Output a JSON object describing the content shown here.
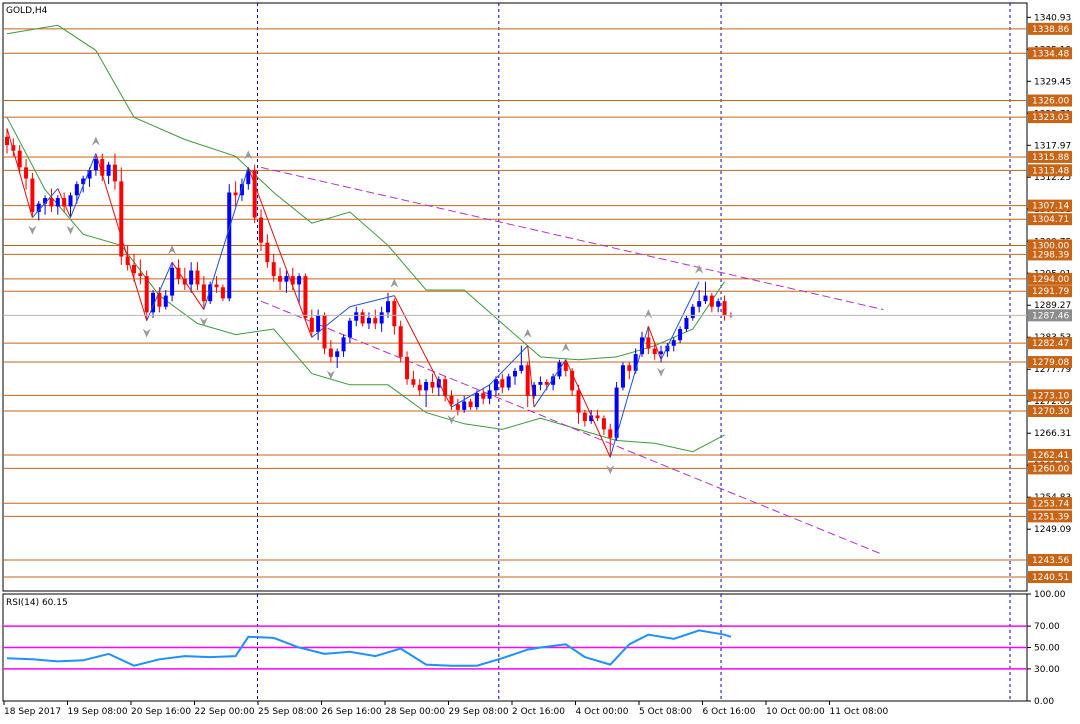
{
  "chart_title": "GOLD,H4",
  "rsi_label": "RSI(14) 60.15",
  "colors": {
    "background": "#ffffff",
    "frame": "#000000",
    "bull_candle": "#0000ff",
    "bear_candle": "#ff0000",
    "bollinger": "#3c9a3c",
    "level_line": "#c86414",
    "level_label_bg": "#c86414",
    "channel": "#b432c8",
    "zigzag_down": "#e01010",
    "zigzag_up": "#1e50dc",
    "session_separator": "#0000cc",
    "fractal": "#9a9a9a",
    "rsi_line": "#1e90ff",
    "rsi_levels": "#ff00ff",
    "current_price_bg": "#8c8c8c"
  },
  "chart_data": {
    "type": "candlestick",
    "symbol": "GOLD",
    "timeframe": "H4",
    "x_tick_labels": [
      "18 Sep 2017",
      "19 Sep 08:00",
      "20 Sep 16:00",
      "22 Sep 00:00",
      "25 Sep 08:00",
      "26 Sep 16:00",
      "28 Sep 00:00",
      "29 Sep 08:00",
      "2 Oct 16:00",
      "4 Oct 00:00",
      "5 Oct 08:00",
      "6 Oct 16:00",
      "10 Oct 00:00",
      "11 Oct 08:00"
    ],
    "y_tick_labels": [
      "1340.93",
      "1335.19",
      "1329.45",
      "1323.71",
      "1317.97",
      "1312.25",
      "1306.51",
      "1300.75",
      "1295.01",
      "1289.27",
      "1283.53",
      "1277.79",
      "1272.05",
      "1266.31",
      "1260.57",
      "1254.83",
      "1249.09"
    ],
    "ylim": [
      1238.0,
      1343.5
    ],
    "current_price": "1287.46",
    "price_levels": [
      "1338.86",
      "1334.48",
      "1326.00",
      "1323.03",
      "1315.88",
      "1313.48",
      "1307.14",
      "1304.71",
      "1300.00",
      "1298.39",
      "1294.00",
      "1291.79",
      "1282.47",
      "1279.08",
      "1273.10",
      "1270.30",
      "1262.41",
      "1260.00",
      "1253.74",
      "1251.39",
      "1243.56",
      "1240.51"
    ],
    "candles": [
      {
        "o": 1319.5,
        "h": 1321.0,
        "l": 1316.5,
        "c": 1318.0
      },
      {
        "o": 1318.0,
        "h": 1319.2,
        "l": 1316.0,
        "c": 1317.0
      },
      {
        "o": 1317.0,
        "h": 1318.0,
        "l": 1313.0,
        "c": 1314.0
      },
      {
        "o": 1314.0,
        "h": 1315.5,
        "l": 1310.0,
        "c": 1312.0
      },
      {
        "o": 1312.0,
        "h": 1313.0,
        "l": 1305.0,
        "c": 1306.0
      },
      {
        "o": 1306.0,
        "h": 1308.0,
        "l": 1304.5,
        "c": 1307.5
      },
      {
        "o": 1307.5,
        "h": 1309.0,
        "l": 1305.5,
        "c": 1308.5
      },
      {
        "o": 1308.5,
        "h": 1310.2,
        "l": 1306.0,
        "c": 1307.0
      },
      {
        "o": 1307.0,
        "h": 1309.0,
        "l": 1305.5,
        "c": 1308.5
      },
      {
        "o": 1308.5,
        "h": 1309.5,
        "l": 1306.0,
        "c": 1307.0
      },
      {
        "o": 1307.0,
        "h": 1309.5,
        "l": 1305.0,
        "c": 1309.0
      },
      {
        "o": 1309.0,
        "h": 1311.5,
        "l": 1307.5,
        "c": 1311.0
      },
      {
        "o": 1311.0,
        "h": 1312.5,
        "l": 1309.5,
        "c": 1312.0
      },
      {
        "o": 1312.0,
        "h": 1314.0,
        "l": 1310.5,
        "c": 1313.5
      },
      {
        "o": 1313.5,
        "h": 1316.0,
        "l": 1312.5,
        "c": 1315.5
      },
      {
        "o": 1315.5,
        "h": 1316.5,
        "l": 1311.5,
        "c": 1312.5
      },
      {
        "o": 1312.5,
        "h": 1315.0,
        "l": 1311.0,
        "c": 1314.5
      },
      {
        "o": 1314.5,
        "h": 1316.5,
        "l": 1310.0,
        "c": 1311.5
      },
      {
        "o": 1311.5,
        "h": 1314.0,
        "l": 1296.5,
        "c": 1298.0
      },
      {
        "o": 1298.0,
        "h": 1300.0,
        "l": 1295.5,
        "c": 1296.5
      },
      {
        "o": 1296.5,
        "h": 1298.5,
        "l": 1293.5,
        "c": 1295.0
      },
      {
        "o": 1295.0,
        "h": 1297.5,
        "l": 1293.0,
        "c": 1294.5
      },
      {
        "o": 1294.5,
        "h": 1295.5,
        "l": 1286.5,
        "c": 1288.0
      },
      {
        "o": 1288.0,
        "h": 1292.0,
        "l": 1287.0,
        "c": 1291.5
      },
      {
        "o": 1291.5,
        "h": 1292.5,
        "l": 1288.0,
        "c": 1289.0
      },
      {
        "o": 1289.0,
        "h": 1292.0,
        "l": 1288.5,
        "c": 1291.0
      },
      {
        "o": 1291.0,
        "h": 1297.0,
        "l": 1290.0,
        "c": 1296.0
      },
      {
        "o": 1296.0,
        "h": 1297.5,
        "l": 1293.0,
        "c": 1294.0
      },
      {
        "o": 1294.0,
        "h": 1296.0,
        "l": 1292.0,
        "c": 1293.0
      },
      {
        "o": 1293.0,
        "h": 1297.0,
        "l": 1291.5,
        "c": 1295.5
      },
      {
        "o": 1295.5,
        "h": 1297.0,
        "l": 1292.0,
        "c": 1293.0
      },
      {
        "o": 1293.0,
        "h": 1294.5,
        "l": 1288.5,
        "c": 1290.0
      },
      {
        "o": 1290.0,
        "h": 1293.5,
        "l": 1289.5,
        "c": 1293.0
      },
      {
        "o": 1293.0,
        "h": 1294.5,
        "l": 1291.5,
        "c": 1292.5
      },
      {
        "o": 1292.5,
        "h": 1293.0,
        "l": 1290.0,
        "c": 1290.5
      },
      {
        "o": 1290.5,
        "h": 1311.0,
        "l": 1290.0,
        "c": 1309.5
      },
      {
        "o": 1309.5,
        "h": 1311.5,
        "l": 1307.0,
        "c": 1309.0
      },
      {
        "o": 1309.0,
        "h": 1312.0,
        "l": 1308.0,
        "c": 1311.0
      },
      {
        "o": 1311.0,
        "h": 1314.0,
        "l": 1310.0,
        "c": 1313.5
      },
      {
        "o": 1313.5,
        "h": 1314.5,
        "l": 1304.0,
        "c": 1305.0
      },
      {
        "o": 1305.0,
        "h": 1306.5,
        "l": 1299.0,
        "c": 1300.5
      },
      {
        "o": 1300.5,
        "h": 1302.0,
        "l": 1296.0,
        "c": 1297.0
      },
      {
        "o": 1297.0,
        "h": 1298.5,
        "l": 1293.5,
        "c": 1294.5
      },
      {
        "o": 1294.5,
        "h": 1296.0,
        "l": 1292.0,
        "c": 1293.5
      },
      {
        "o": 1293.5,
        "h": 1295.5,
        "l": 1291.5,
        "c": 1294.5
      },
      {
        "o": 1294.5,
        "h": 1296.0,
        "l": 1292.0,
        "c": 1293.0
      },
      {
        "o": 1293.0,
        "h": 1295.0,
        "l": 1289.5,
        "c": 1294.5
      },
      {
        "o": 1294.5,
        "h": 1295.0,
        "l": 1286.5,
        "c": 1287.0
      },
      {
        "o": 1287.0,
        "h": 1288.5,
        "l": 1283.5,
        "c": 1284.5
      },
      {
        "o": 1284.5,
        "h": 1288.5,
        "l": 1283.0,
        "c": 1287.5
      },
      {
        "o": 1287.5,
        "h": 1288.0,
        "l": 1280.5,
        "c": 1281.5
      },
      {
        "o": 1281.5,
        "h": 1283.0,
        "l": 1279.0,
        "c": 1280.0
      },
      {
        "o": 1280.0,
        "h": 1281.5,
        "l": 1278.0,
        "c": 1281.0
      },
      {
        "o": 1281.0,
        "h": 1284.0,
        "l": 1280.0,
        "c": 1283.5
      },
      {
        "o": 1283.5,
        "h": 1287.0,
        "l": 1282.5,
        "c": 1286.5
      },
      {
        "o": 1286.5,
        "h": 1289.0,
        "l": 1285.5,
        "c": 1288.0
      },
      {
        "o": 1288.0,
        "h": 1288.5,
        "l": 1285.5,
        "c": 1286.0
      },
      {
        "o": 1286.0,
        "h": 1288.0,
        "l": 1285.0,
        "c": 1287.0
      },
      {
        "o": 1287.0,
        "h": 1288.5,
        "l": 1285.0,
        "c": 1286.0
      },
      {
        "o": 1286.0,
        "h": 1289.0,
        "l": 1284.5,
        "c": 1288.0
      },
      {
        "o": 1288.0,
        "h": 1291.5,
        "l": 1287.0,
        "c": 1290.0
      },
      {
        "o": 1290.0,
        "h": 1290.5,
        "l": 1284.0,
        "c": 1285.5
      },
      {
        "o": 1285.5,
        "h": 1286.5,
        "l": 1279.0,
        "c": 1280.0
      },
      {
        "o": 1280.0,
        "h": 1281.0,
        "l": 1275.0,
        "c": 1276.0
      },
      {
        "o": 1276.0,
        "h": 1277.5,
        "l": 1274.5,
        "c": 1275.0
      },
      {
        "o": 1275.0,
        "h": 1276.0,
        "l": 1273.0,
        "c": 1274.0
      },
      {
        "o": 1274.0,
        "h": 1276.0,
        "l": 1271.0,
        "c": 1275.5
      },
      {
        "o": 1275.5,
        "h": 1277.0,
        "l": 1273.5,
        "c": 1274.5
      },
      {
        "o": 1274.5,
        "h": 1276.5,
        "l": 1273.0,
        "c": 1276.0
      },
      {
        "o": 1276.0,
        "h": 1276.5,
        "l": 1272.0,
        "c": 1273.0
      },
      {
        "o": 1273.0,
        "h": 1274.0,
        "l": 1270.5,
        "c": 1271.5
      },
      {
        "o": 1271.5,
        "h": 1272.5,
        "l": 1269.5,
        "c": 1270.5
      },
      {
        "o": 1270.5,
        "h": 1273.0,
        "l": 1270.0,
        "c": 1272.0
      },
      {
        "o": 1272.0,
        "h": 1272.5,
        "l": 1270.5,
        "c": 1271.0
      },
      {
        "o": 1271.0,
        "h": 1274.0,
        "l": 1270.5,
        "c": 1273.5
      },
      {
        "o": 1273.5,
        "h": 1274.5,
        "l": 1271.5,
        "c": 1272.5
      },
      {
        "o": 1272.5,
        "h": 1275.0,
        "l": 1271.5,
        "c": 1274.0
      },
      {
        "o": 1274.0,
        "h": 1276.5,
        "l": 1273.0,
        "c": 1276.0
      },
      {
        "o": 1276.0,
        "h": 1277.0,
        "l": 1273.5,
        "c": 1274.5
      },
      {
        "o": 1274.5,
        "h": 1277.0,
        "l": 1274.0,
        "c": 1276.5
      },
      {
        "o": 1276.5,
        "h": 1278.0,
        "l": 1275.0,
        "c": 1277.5
      },
      {
        "o": 1277.5,
        "h": 1282.0,
        "l": 1277.0,
        "c": 1278.5
      },
      {
        "o": 1278.5,
        "h": 1279.0,
        "l": 1271.0,
        "c": 1273.0
      },
      {
        "o": 1273.0,
        "h": 1275.5,
        "l": 1272.5,
        "c": 1275.0
      },
      {
        "o": 1275.0,
        "h": 1276.5,
        "l": 1274.0,
        "c": 1275.5
      },
      {
        "o": 1275.5,
        "h": 1276.0,
        "l": 1274.0,
        "c": 1275.0
      },
      {
        "o": 1275.0,
        "h": 1277.0,
        "l": 1274.0,
        "c": 1276.5
      },
      {
        "o": 1276.5,
        "h": 1279.5,
        "l": 1276.0,
        "c": 1279.0
      },
      {
        "o": 1279.0,
        "h": 1279.5,
        "l": 1276.5,
        "c": 1277.5
      },
      {
        "o": 1277.5,
        "h": 1278.0,
        "l": 1273.0,
        "c": 1274.0
      },
      {
        "o": 1274.0,
        "h": 1275.0,
        "l": 1268.0,
        "c": 1270.0
      },
      {
        "o": 1270.0,
        "h": 1270.5,
        "l": 1267.5,
        "c": 1268.5
      },
      {
        "o": 1268.5,
        "h": 1270.5,
        "l": 1268.0,
        "c": 1269.5
      },
      {
        "o": 1269.5,
        "h": 1270.5,
        "l": 1268.5,
        "c": 1269.0
      },
      {
        "o": 1269.0,
        "h": 1269.5,
        "l": 1266.0,
        "c": 1267.0
      },
      {
        "o": 1267.0,
        "h": 1268.0,
        "l": 1262.0,
        "c": 1265.5
      },
      {
        "o": 1265.5,
        "h": 1275.5,
        "l": 1265.0,
        "c": 1274.5
      },
      {
        "o": 1274.5,
        "h": 1279.0,
        "l": 1274.0,
        "c": 1278.5
      },
      {
        "o": 1278.5,
        "h": 1279.0,
        "l": 1276.0,
        "c": 1277.5
      },
      {
        "o": 1277.5,
        "h": 1281.5,
        "l": 1277.0,
        "c": 1280.5
      },
      {
        "o": 1280.5,
        "h": 1284.5,
        "l": 1280.0,
        "c": 1283.5
      },
      {
        "o": 1283.5,
        "h": 1285.5,
        "l": 1280.5,
        "c": 1281.5
      },
      {
        "o": 1281.5,
        "h": 1282.5,
        "l": 1279.5,
        "c": 1280.5
      },
      {
        "o": 1280.5,
        "h": 1282.0,
        "l": 1279.0,
        "c": 1281.0
      },
      {
        "o": 1281.0,
        "h": 1282.5,
        "l": 1280.0,
        "c": 1282.0
      },
      {
        "o": 1282.0,
        "h": 1283.5,
        "l": 1281.0,
        "c": 1283.0
      },
      {
        "o": 1283.0,
        "h": 1285.5,
        "l": 1282.5,
        "c": 1285.0
      },
      {
        "o": 1285.0,
        "h": 1287.5,
        "l": 1284.5,
        "c": 1287.0
      },
      {
        "o": 1287.0,
        "h": 1289.5,
        "l": 1286.5,
        "c": 1289.0
      },
      {
        "o": 1289.0,
        "h": 1292.0,
        "l": 1288.0,
        "c": 1290.0
      },
      {
        "o": 1290.0,
        "h": 1293.5,
        "l": 1289.5,
        "c": 1291.0
      },
      {
        "o": 1291.0,
        "h": 1291.5,
        "l": 1288.0,
        "c": 1289.0
      },
      {
        "o": 1289.0,
        "h": 1290.5,
        "l": 1288.0,
        "c": 1290.0
      },
      {
        "o": 1290.0,
        "h": 1291.0,
        "l": 1286.5,
        "c": 1287.5
      },
      {
        "o": 1287.5,
        "h": 1288.0,
        "l": 1287.0,
        "c": 1287.46
      }
    ],
    "bollinger_upper": [
      [
        0,
        1338.0
      ],
      [
        8,
        1339.5
      ],
      [
        14,
        1335.0
      ],
      [
        20,
        1323.0
      ],
      [
        28,
        1319.0
      ],
      [
        36,
        1316.0
      ],
      [
        42,
        1309.5
      ],
      [
        48,
        1304.0
      ],
      [
        54,
        1306.0
      ],
      [
        60,
        1300.0
      ],
      [
        66,
        1292.0
      ],
      [
        72,
        1292.0
      ],
      [
        78,
        1286.0
      ],
      [
        84,
        1280.0
      ],
      [
        90,
        1279.5
      ],
      [
        96,
        1280.0
      ],
      [
        102,
        1282.0
      ],
      [
        108,
        1285.0
      ],
      [
        113,
        1293.5
      ]
    ],
    "bollinger_lower": [
      [
        0,
        1323.0
      ],
      [
        6,
        1310.0
      ],
      [
        12,
        1302.0
      ],
      [
        18,
        1300.0
      ],
      [
        24,
        1291.0
      ],
      [
        30,
        1286.0
      ],
      [
        36,
        1284.0
      ],
      [
        42,
        1285.0
      ],
      [
        48,
        1277.0
      ],
      [
        54,
        1275.0
      ],
      [
        60,
        1275.0
      ],
      [
        66,
        1270.0
      ],
      [
        72,
        1268.0
      ],
      [
        78,
        1267.0
      ],
      [
        84,
        1269.0
      ],
      [
        90,
        1267.0
      ],
      [
        96,
        1265.0
      ],
      [
        102,
        1264.5
      ],
      [
        108,
        1263.0
      ],
      [
        113,
        1266.0
      ]
    ],
    "channel": [
      [
        40,
        1314.0
      ],
      [
        138,
        1288.5
      ],
      [
        40,
        1290.0
      ],
      [
        138,
        1244.5
      ]
    ],
    "zigzag": [
      [
        0,
        1321.0
      ],
      [
        4,
        1305.0
      ],
      [
        8,
        1310.2
      ],
      [
        10,
        1305.0
      ],
      [
        14,
        1316.5
      ],
      [
        22,
        1286.5
      ],
      [
        26,
        1297.0
      ],
      [
        31,
        1288.5
      ],
      [
        38,
        1314.0
      ],
      [
        48,
        1283.5
      ],
      [
        54,
        1289.0
      ],
      [
        61,
        1291.0
      ],
      [
        70,
        1271.0
      ],
      [
        76,
        1275.0
      ],
      [
        82,
        1282.0
      ],
      [
        83,
        1271.0
      ],
      [
        88,
        1279.5
      ],
      [
        95,
        1262.0
      ],
      [
        101,
        1285.5
      ],
      [
        103,
        1279.5
      ],
      [
        109,
        1293.5
      ]
    ],
    "fractal_up": [
      [
        14,
        1316.5
      ],
      [
        26,
        1297.0
      ],
      [
        38,
        1314.0
      ],
      [
        61,
        1291.0
      ],
      [
        82,
        1282.0
      ],
      [
        88,
        1279.5
      ],
      [
        101,
        1285.5
      ],
      [
        109,
        1293.5
      ]
    ],
    "fractal_down": [
      [
        4,
        1305.0
      ],
      [
        10,
        1305.0
      ],
      [
        22,
        1286.5
      ],
      [
        31,
        1288.5
      ],
      [
        51,
        1279.0
      ],
      [
        70,
        1271.0
      ],
      [
        95,
        1262.0
      ],
      [
        103,
        1279.5
      ]
    ],
    "rsi": {
      "levels": [
        70,
        50,
        30
      ],
      "y_tick_labels": [
        "100.00",
        "70.00",
        "50.00",
        "30.00",
        "0.00"
      ],
      "values": [
        [
          0,
          40
        ],
        [
          4,
          39
        ],
        [
          8,
          37
        ],
        [
          12,
          38
        ],
        [
          16,
          44
        ],
        [
          20,
          33
        ],
        [
          24,
          39
        ],
        [
          28,
          42
        ],
        [
          32,
          41
        ],
        [
          36,
          42
        ],
        [
          38,
          60
        ],
        [
          42,
          59
        ],
        [
          46,
          50
        ],
        [
          50,
          44
        ],
        [
          54,
          46
        ],
        [
          58,
          42
        ],
        [
          62,
          49
        ],
        [
          66,
          34
        ],
        [
          70,
          33
        ],
        [
          74,
          33
        ],
        [
          78,
          40
        ],
        [
          82,
          48
        ],
        [
          84,
          50
        ],
        [
          88,
          53
        ],
        [
          91,
          41
        ],
        [
          95,
          34
        ],
        [
          98,
          53
        ],
        [
          101,
          62
        ],
        [
          105,
          58
        ],
        [
          109,
          66
        ],
        [
          113,
          62
        ],
        [
          114,
          60
        ]
      ]
    }
  }
}
